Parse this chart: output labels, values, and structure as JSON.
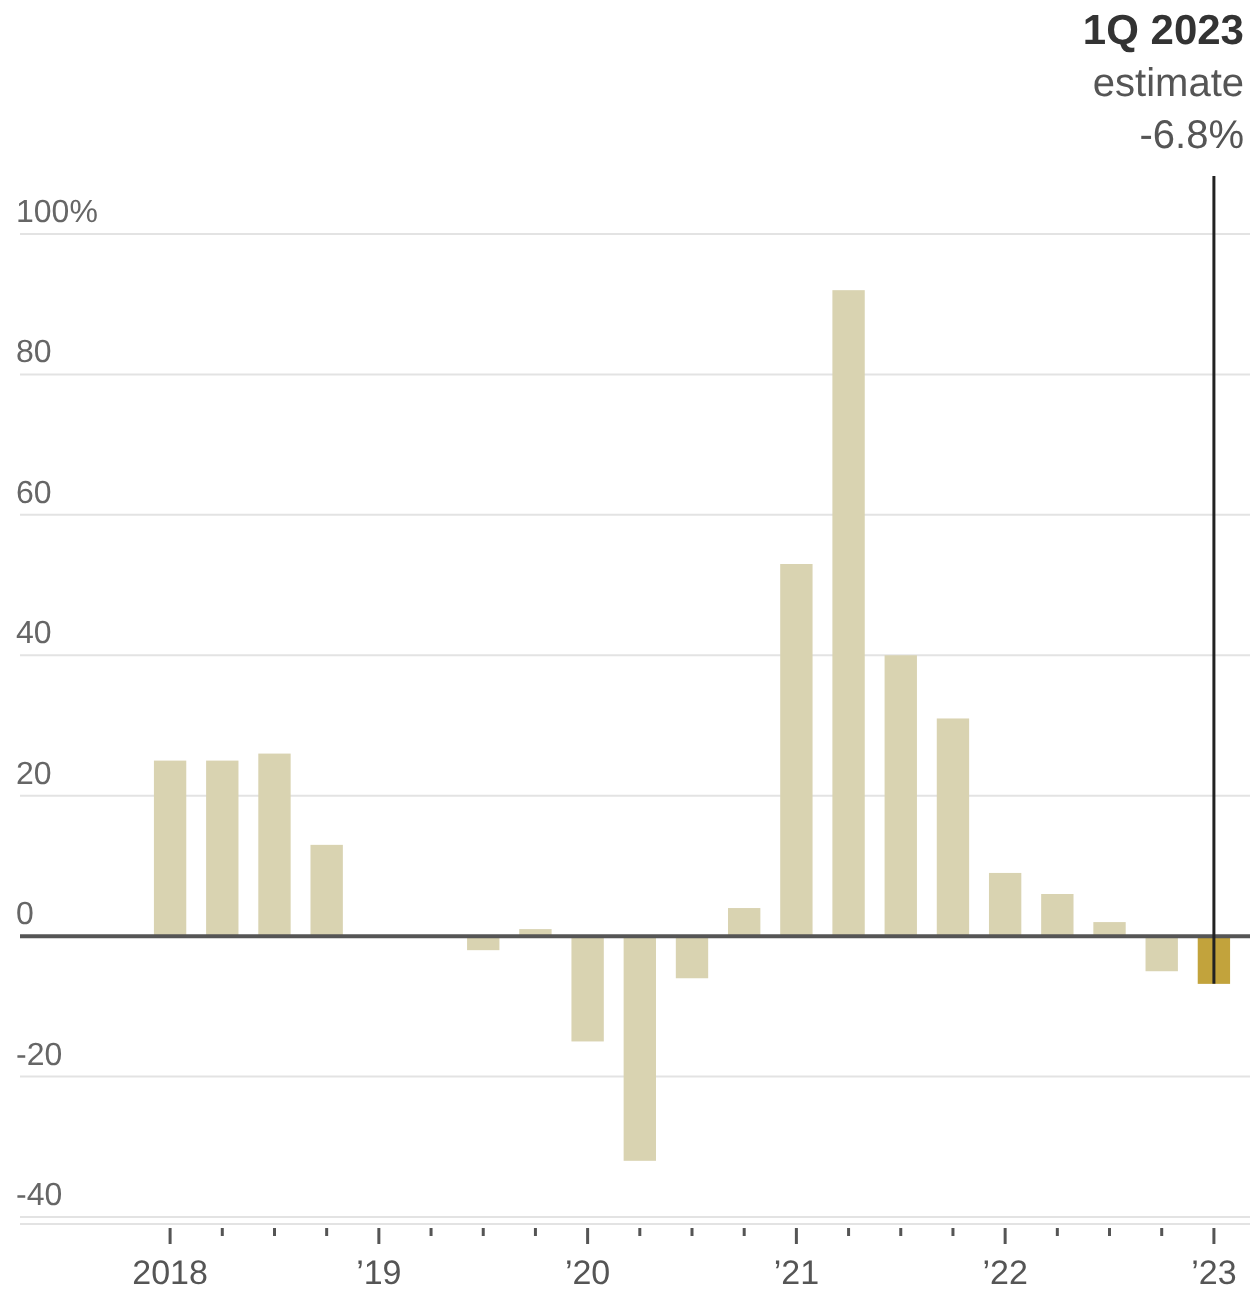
{
  "chart_data": {
    "type": "bar",
    "categories": [
      "2018",
      null,
      null,
      null,
      "’19",
      null,
      null,
      null,
      "’20",
      null,
      null,
      null,
      "’21",
      null,
      null,
      null,
      "’22",
      null,
      null,
      null,
      "’23"
    ],
    "values": [
      25,
      25,
      26,
      13,
      0,
      0,
      -2,
      1,
      -15,
      -32,
      -6,
      4,
      53,
      92,
      40,
      31,
      9,
      6,
      2,
      -5,
      -6.8
    ],
    "colors": [
      "#d9d3b1",
      "#d9d3b1",
      "#d9d3b1",
      "#d9d3b1",
      "#d9d3b1",
      "#d9d3b1",
      "#d9d3b1",
      "#d9d3b1",
      "#d9d3b1",
      "#d9d3b1",
      "#d9d3b1",
      "#d9d3b1",
      "#d9d3b1",
      "#d9d3b1",
      "#d9d3b1",
      "#d9d3b1",
      "#d9d3b1",
      "#d9d3b1",
      "#d9d3b1",
      "#d9d3b1",
      "#c2a33c"
    ],
    "ylim": [
      -41,
      100
    ],
    "yticks": [
      -40,
      -20,
      0,
      20,
      40,
      60,
      80,
      {
        "value": 100,
        "label": "100%"
      }
    ],
    "grid": "y",
    "annotations": [
      {
        "text": "1Q 2023\nestimate\n-6.8%",
        "x": "’23",
        "y": -6.8
      }
    ]
  }
}
